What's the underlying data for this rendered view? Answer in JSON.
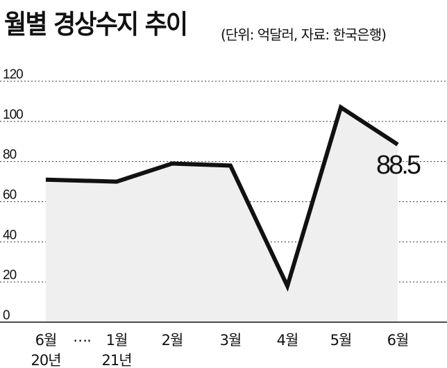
{
  "title": "월별 경상수지 추이",
  "subtitle": "(단위: 억달러, 자료: 한국은행)",
  "chart_data": {
    "type": "area",
    "categories": [
      "6월",
      "1월",
      "2월",
      "3월",
      "4월",
      "5월",
      "6월"
    ],
    "year_labels": [
      "20년",
      "21년"
    ],
    "ellipsis": "….",
    "values": [
      71,
      70,
      79,
      78,
      18,
      107,
      88.5
    ],
    "data_label": "88.5",
    "ylim": [
      0,
      120
    ],
    "yticks": [
      0,
      20,
      40,
      60,
      80,
      100,
      120
    ],
    "grid": true,
    "line_color": "#111111",
    "fill_color": "#efefef"
  }
}
